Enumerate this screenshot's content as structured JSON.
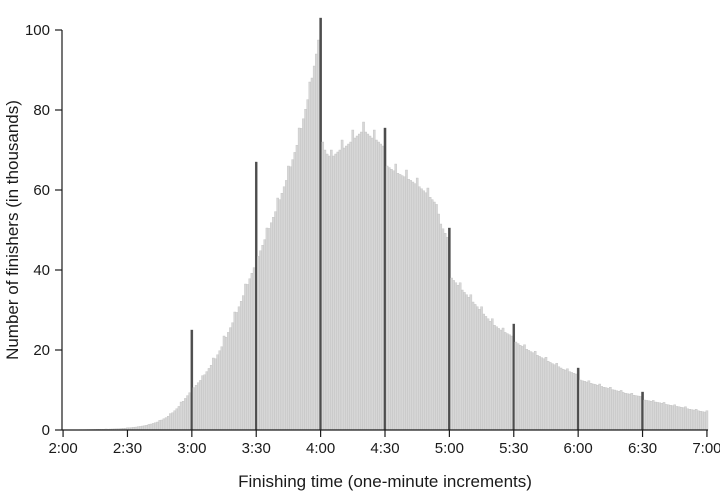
{
  "chart_data": {
    "type": "bar",
    "title": "",
    "xlabel": "Finishing time (one-minute increments)",
    "ylabel": "Number of finishers (in thousands)",
    "x_tick_labels": [
      "2:00",
      "2:30",
      "3:00",
      "3:30",
      "4:00",
      "4:30",
      "5:00",
      "5:30",
      "6:00",
      "6:30",
      "7:00"
    ],
    "y_ticks": [
      0,
      20,
      40,
      60,
      80,
      100
    ],
    "ylim": [
      0,
      105
    ],
    "x_range": [
      "2:00",
      "7:00"
    ],
    "bin_minutes": 1,
    "x_start_minutes": 120,
    "spike_times": [
      "3:00",
      "3:30",
      "4:00",
      "4:30",
      "5:00",
      "5:30",
      "6:00",
      "6:30"
    ],
    "peak": {
      "time": "4:00",
      "value": 103
    },
    "bar_color": "#d7d7d7",
    "bar_stroke": "#bcbcbc",
    "spike_color": "#4d4d4d",
    "axis_color": "#1a1a1a",
    "values": [
      0.05,
      0.05,
      0.05,
      0.06,
      0.06,
      0.07,
      0.07,
      0.08,
      0.09,
      0.09,
      0.1,
      0.11,
      0.12,
      0.13,
      0.14,
      0.15,
      0.17,
      0.18,
      0.19,
      0.2,
      0.25,
      0.22,
      0.24,
      0.26,
      0.28,
      0.3,
      0.34,
      0.38,
      0.42,
      0.46,
      0.55,
      0.56,
      0.62,
      0.68,
      0.74,
      0.85,
      0.9,
      1.0,
      1.1,
      1.2,
      1.4,
      1.5,
      1.65,
      1.8,
      2.0,
      2.4,
      2.5,
      2.8,
      3.1,
      3.45,
      4.1,
      4.3,
      4.8,
      5.3,
      5.9,
      7.0,
      7.2,
      7.9,
      8.6,
      9.3,
      25,
      10.6,
      11.2,
      11.8,
      12.4,
      13.6,
      13.8,
      14.6,
      15.4,
      16.2,
      18,
      17.8,
      18.8,
      19.8,
      20.8,
      23.5,
      23.2,
      24.4,
      25.6,
      26.8,
      29.5,
      29.4,
      30.8,
      32.2,
      33.6,
      36.5,
      36.4,
      37.8,
      39.2,
      40.6,
      67,
      43.4,
      44.8,
      46.2,
      47.6,
      50.5,
      50.4,
      51.8,
      53.2,
      54.6,
      58,
      57.6,
      59.2,
      60.8,
      62.4,
      66,
      65.8,
      67.6,
      69.4,
      71.2,
      75.5,
      75.4,
      77.8,
      80.2,
      82.6,
      87,
      88,
      91,
      94,
      97.5,
      103,
      72,
      70,
      69,
      68.5,
      70,
      68.5,
      69,
      69.5,
      70,
      72.5,
      70.5,
      71,
      71.5,
      72,
      75,
      73,
      73.5,
      74,
      74.5,
      77,
      74.5,
      74,
      73.5,
      73,
      75,
      72.5,
      72,
      71.5,
      71,
      75.5,
      66,
      65.6,
      65.2,
      64.8,
      66.5,
      64.2,
      63.9,
      63.6,
      63.3,
      65,
      62.7,
      62.4,
      62,
      61.6,
      63,
      60.8,
      60.3,
      59.8,
      59.3,
      60.5,
      58.2,
      57.6,
      57,
      56.4,
      54,
      51.5,
      50.3,
      49.2,
      48.2,
      50.5,
      38,
      37.4,
      36.8,
      36.2,
      36.8,
      35,
      34.4,
      33.8,
      33.2,
      33.8,
      32,
      31.4,
      30.8,
      30.2,
      30.8,
      29,
      28.4,
      27.8,
      27.2,
      27.8,
      26.2,
      25.8,
      25.4,
      25,
      25.5,
      24.4,
      24.1,
      23.8,
      23.5,
      26.5,
      22,
      21.6,
      21.2,
      20.9,
      21.3,
      20.2,
      19.9,
      19.6,
      19.3,
      19.7,
      18.7,
      18.4,
      18.1,
      17.8,
      18.2,
      17.2,
      16.9,
      16.6,
      16.3,
      16.7,
      15.8,
      15.5,
      15.2,
      15,
      15.3,
      14.6,
      14.4,
      14.2,
      14,
      15.5,
      12.5,
      12.3,
      12.2,
      12,
      12.3,
      11.7,
      11.5,
      11.4,
      11.2,
      11.5,
      10.9,
      10.7,
      10.6,
      10.4,
      10.7,
      10.1,
      10,
      9.8,
      9.7,
      9.9,
      9.4,
      9.2,
      9.1,
      9,
      9.2,
      8.7,
      8.6,
      8.5,
      8.4,
      9.5,
      7.5,
      7.4,
      7.3,
      7.2,
      7.4,
      7,
      6.9,
      6.8,
      6.7,
      6.9,
      6.4,
      6.3,
      6.2,
      6.1,
      6.3,
      5.9,
      5.8,
      5.7,
      5.6,
      5.8,
      5.3,
      5.2,
      5.1,
      5,
      5.2,
      4.8,
      4.7,
      4.6,
      4.5,
      4.8
    ]
  }
}
